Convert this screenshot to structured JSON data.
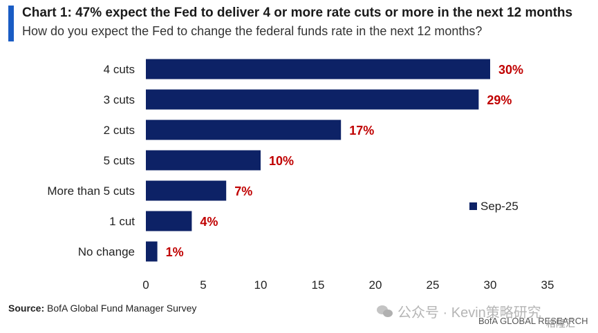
{
  "header": {
    "title": "Chart 1: 47% expect the Fed to deliver 4 or more rate cuts or more in the next 12 months",
    "subtitle": "How do you expect the Fed to change the federal funds rate in the next 12 months?"
  },
  "chart_data": {
    "type": "bar",
    "orientation": "horizontal",
    "categories": [
      "4 cuts",
      "3 cuts",
      "2 cuts",
      "5 cuts",
      "More than 5 cuts",
      "1 cut",
      "No change"
    ],
    "series": [
      {
        "name": "Sep-25",
        "values": [
          30,
          29,
          17,
          10,
          7,
          4,
          1
        ]
      }
    ],
    "data_labels": [
      "30%",
      "29%",
      "17%",
      "10%",
      "7%",
      "4%",
      "1%"
    ],
    "x_ticks": [
      0,
      5,
      10,
      15,
      20,
      25,
      30,
      35
    ],
    "xlim": [
      0,
      35
    ],
    "legend_position": "right",
    "grid": false,
    "colors": {
      "bar": "#0d2266",
      "label": "#c00000",
      "accent": "#1a5cc4"
    }
  },
  "footer": {
    "source_label": "Source:",
    "source_text": "BofA Global Fund Manager Survey",
    "brand": "BofA GLOBAL RESEARCH",
    "watermark": "公众号 · Kevin策略研究",
    "watermark2": "格隆汇"
  }
}
